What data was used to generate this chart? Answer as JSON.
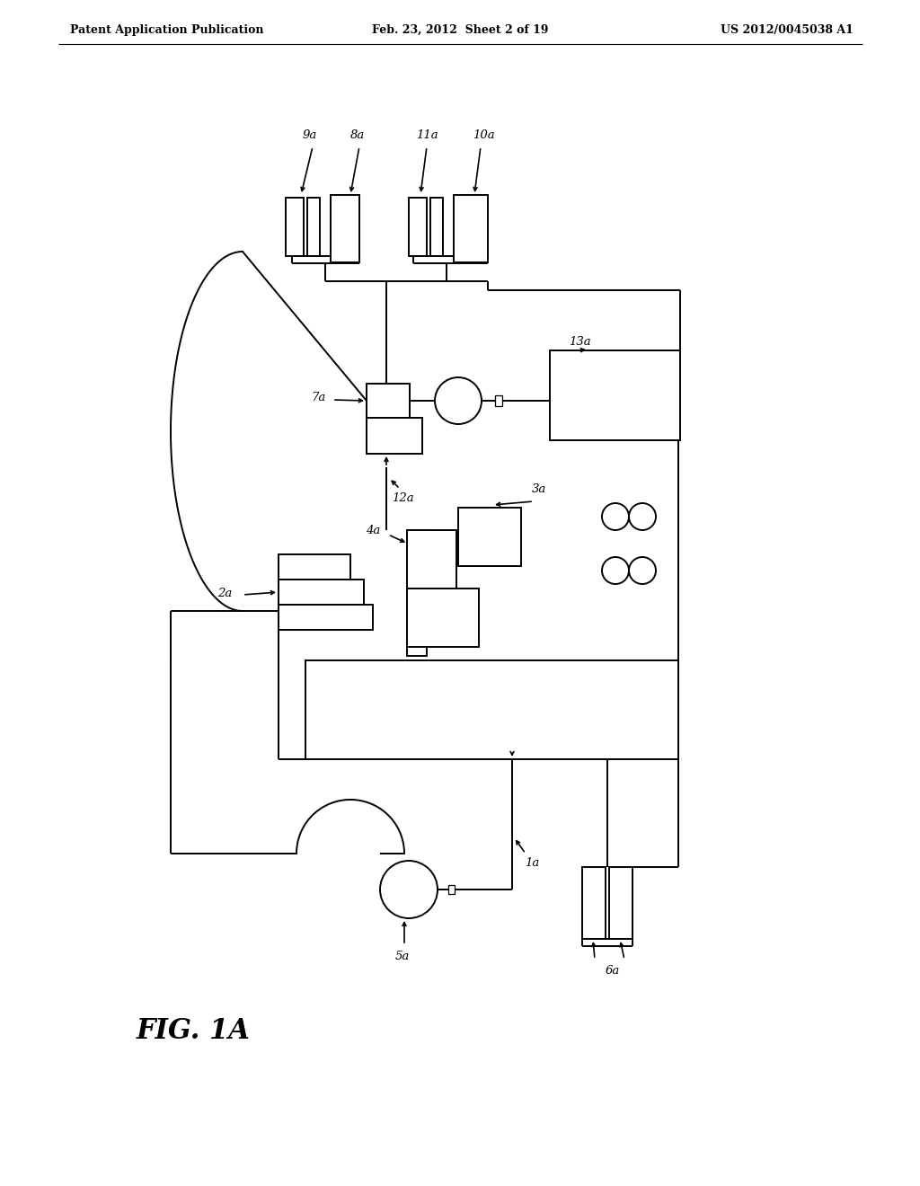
{
  "bg_color": "#ffffff",
  "header_left": "Patent Application Publication",
  "header_mid": "Feb. 23, 2012  Sheet 2 of 19",
  "header_right": "US 2012/0045038 A1",
  "fig_label": "FIG. 1A"
}
